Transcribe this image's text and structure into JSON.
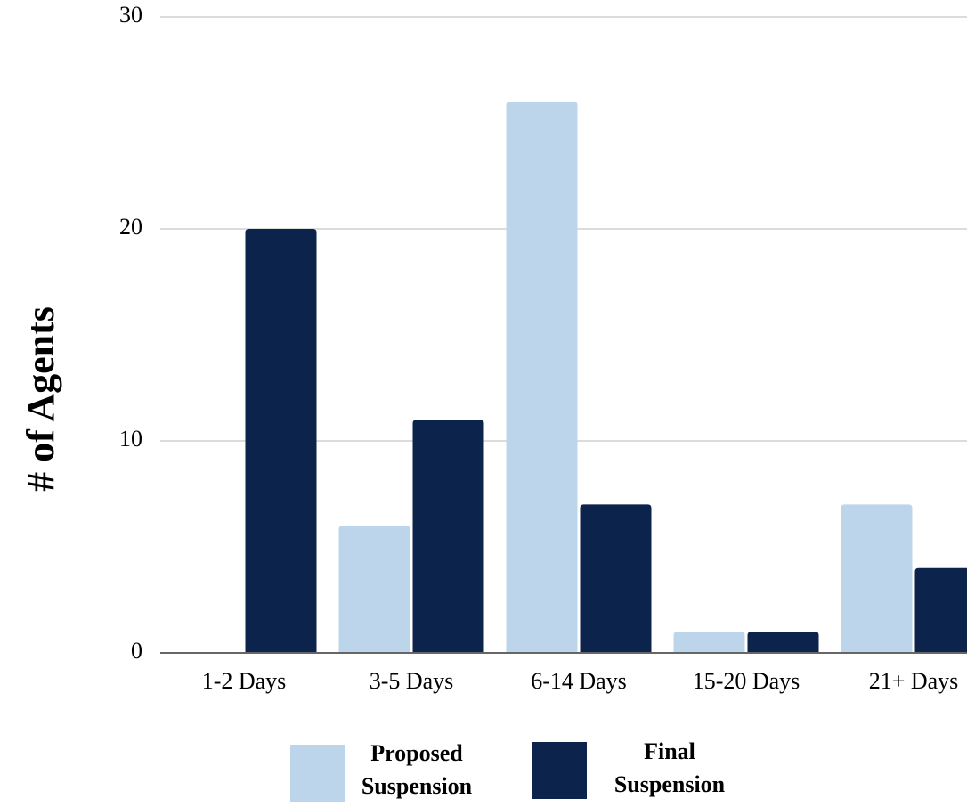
{
  "chart_data": {
    "type": "bar",
    "title": "",
    "xlabel": "",
    "ylabel": "# of Agents",
    "categories": [
      "1-2 Days",
      "3-5 Days",
      "6-14 Days",
      "15-20 Days",
      "21+ Days"
    ],
    "series": [
      {
        "name": "Proposed Suspension",
        "values": [
          0,
          6,
          26,
          1,
          7
        ],
        "color": "#bdd5ea"
      },
      {
        "name": "Final Suspension",
        "values": [
          20,
          11,
          7,
          1,
          4
        ],
        "color": "#0c234b"
      }
    ],
    "ylim": [
      0,
      30
    ],
    "yticks": [
      "0",
      "10",
      "20",
      "30"
    ],
    "grid": true,
    "legend_position": "bottom",
    "legend": [
      {
        "line1": "Proposed",
        "line2": "Suspension"
      },
      {
        "line1": "Final",
        "line2": "Suspension"
      }
    ]
  }
}
